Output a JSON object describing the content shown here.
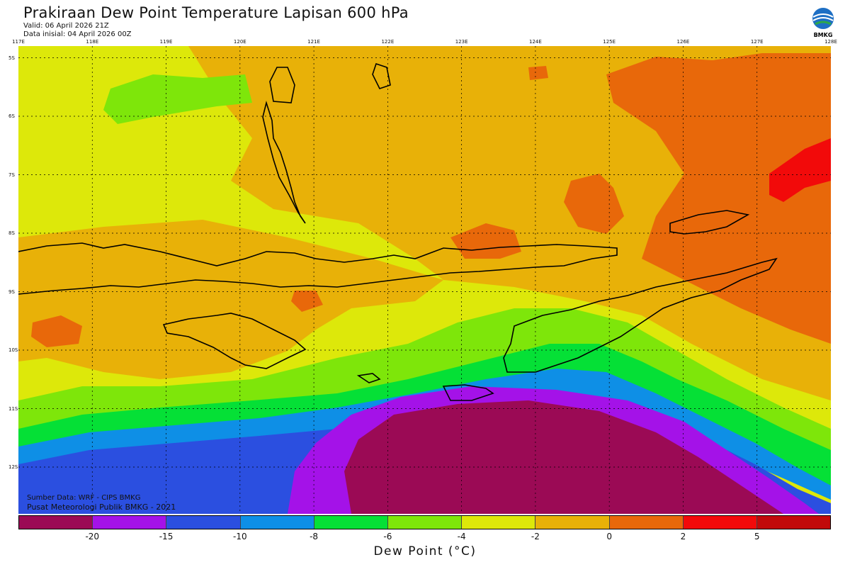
{
  "header": {
    "title": "Prakiraan Dew Point Temperature Lapisan 600 hPa",
    "valid": "Valid: 06 April 2026 21Z",
    "initial": "Data inisial: 04 April 2026 00Z"
  },
  "logo": {
    "label": "BMKG",
    "icon": "bmkg-logo"
  },
  "map": {
    "lon_labels": [
      "117E",
      "118E",
      "119E",
      "120E",
      "121E",
      "122E",
      "123E",
      "124E",
      "125E",
      "126E",
      "127E",
      "128E"
    ],
    "lat_labels": [
      "5S",
      "6S",
      "7S",
      "8S",
      "9S",
      "10S",
      "11S",
      "12S"
    ],
    "lon_range": [
      117,
      128
    ],
    "lat_range": [
      -4.8,
      -12.8
    ]
  },
  "source": {
    "line1": "Sumber Data: WRF - CIPS BMKG",
    "line2": "Pusat Meteorologi Publik BMKG - 2021"
  },
  "colorbar": {
    "title": "Dew Point (°C)",
    "ticks": [
      "-20",
      "-15",
      "-10",
      "-8",
      "-6",
      "-4",
      "-2",
      "0",
      "2",
      "5"
    ],
    "colors": [
      "#9b0a55",
      "#a412e8",
      "#2b4fe0",
      "#0e8fe6",
      "#05e036",
      "#7ee60a",
      "#dde80a",
      "#e8b108",
      "#e8680a",
      "#f20a0a",
      "#c10a0a"
    ]
  }
}
